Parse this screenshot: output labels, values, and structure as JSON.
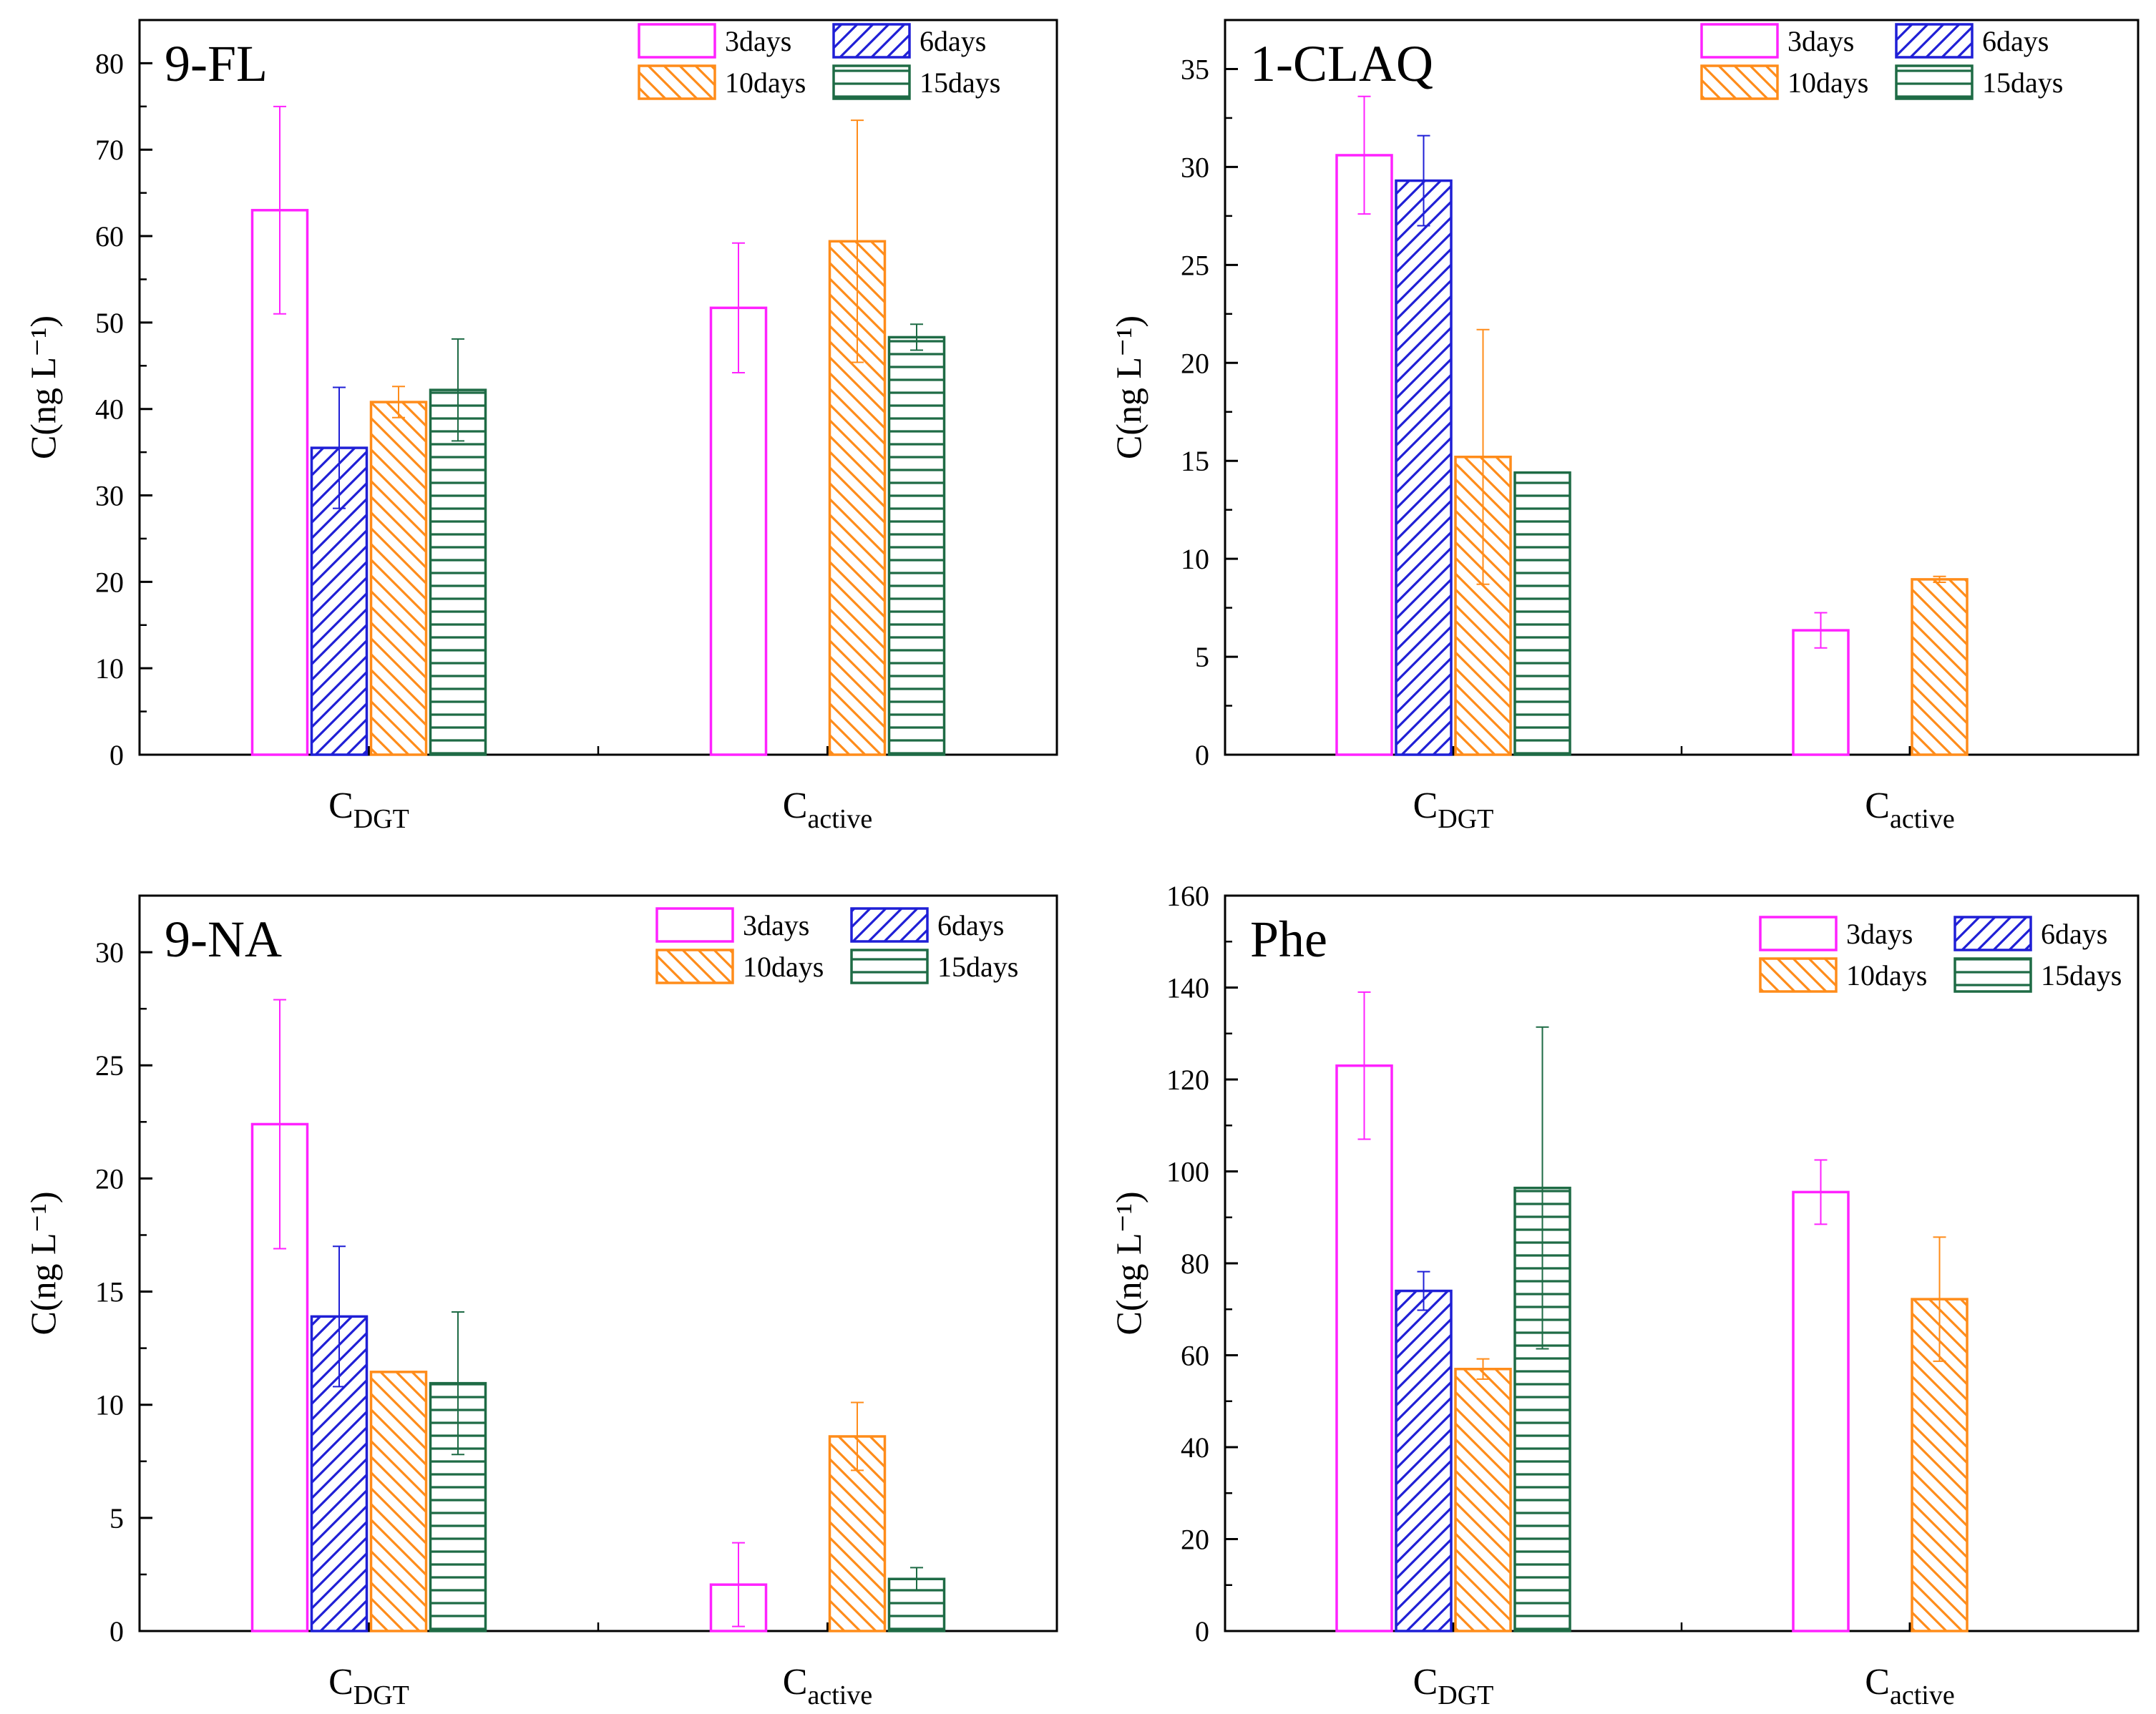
{
  "legend_labels": [
    "3days",
    "6days",
    "10days",
    "15days"
  ],
  "series_style": [
    {
      "name": "3days",
      "color": "#ff22ff",
      "pattern": "none"
    },
    {
      "name": "6days",
      "color": "#1f1fd6",
      "pattern": "diag-up"
    },
    {
      "name": "10days",
      "color": "#ff8c1a",
      "pattern": "diag-down"
    },
    {
      "name": "15days",
      "color": "#1e6b45",
      "pattern": "horizontal"
    }
  ],
  "chart_data": [
    {
      "type": "bar",
      "title": "9-FL",
      "ylabel": "C(ng L⁻¹)",
      "ylim": [
        0,
        85
      ],
      "yticks": [
        0,
        10,
        20,
        30,
        40,
        50,
        60,
        70,
        80
      ],
      "categories": [
        {
          "main": "C",
          "sub": "DGT"
        },
        {
          "main": "C",
          "sub": "active"
        }
      ],
      "series": [
        {
          "name": "3days",
          "values": [
            63,
            51.7
          ],
          "errors": [
            12,
            7.5
          ]
        },
        {
          "name": "6days",
          "values": [
            35.5,
            null
          ],
          "errors": [
            7,
            null
          ]
        },
        {
          "name": "10days",
          "values": [
            40.8,
            59.4
          ],
          "errors": [
            1.8,
            14
          ]
        },
        {
          "name": "15days",
          "values": [
            42.2,
            48.3
          ],
          "errors": [
            5.9,
            1.5
          ]
        }
      ]
    },
    {
      "type": "bar",
      "title": "1-CLAQ",
      "ylabel": "C(ng L⁻¹)",
      "ylim": [
        0,
        37.5
      ],
      "yticks": [
        0,
        5,
        10,
        15,
        20,
        25,
        30,
        35
      ],
      "categories": [
        {
          "main": "C",
          "sub": "DGT"
        },
        {
          "main": "C",
          "sub": "active"
        }
      ],
      "series": [
        {
          "name": "3days",
          "values": [
            30.6,
            6.35
          ],
          "errors": [
            3,
            0.9
          ]
        },
        {
          "name": "6days",
          "values": [
            29.3,
            null
          ],
          "errors": [
            2.3,
            null
          ]
        },
        {
          "name": "10days",
          "values": [
            15.2,
            8.95
          ],
          "errors": [
            6.5,
            0.15
          ]
        },
        {
          "name": "15days",
          "values": [
            14.4,
            null
          ],
          "errors": [
            null,
            null
          ]
        }
      ]
    },
    {
      "type": "bar",
      "title": "9-NA",
      "ylabel": "C(ng L⁻¹)",
      "ylim": [
        0,
        32.5
      ],
      "yticks": [
        0,
        5,
        10,
        15,
        20,
        25,
        30
      ],
      "categories": [
        {
          "main": "C",
          "sub": "DGT"
        },
        {
          "main": "C",
          "sub": "active"
        }
      ],
      "series": [
        {
          "name": "3days",
          "values": [
            22.4,
            2.05
          ],
          "errors": [
            5.5,
            1.85
          ]
        },
        {
          "name": "6days",
          "values": [
            13.9,
            null
          ],
          "errors": [
            3.1,
            null
          ]
        },
        {
          "name": "10days",
          "values": [
            11.45,
            8.6
          ],
          "errors": [
            null,
            1.5
          ]
        },
        {
          "name": "15days",
          "values": [
            10.95,
            2.3
          ],
          "errors": [
            3.15,
            0.5
          ]
        }
      ]
    },
    {
      "type": "bar",
      "title": "Phe",
      "ylabel": "C(ng L⁻¹)",
      "ylim": [
        0,
        160
      ],
      "yticks": [
        0,
        20,
        40,
        60,
        80,
        100,
        120,
        140,
        160
      ],
      "categories": [
        {
          "main": "C",
          "sub": "DGT"
        },
        {
          "main": "C",
          "sub": "active"
        }
      ],
      "series": [
        {
          "name": "3days",
          "values": [
            123,
            95.5
          ],
          "errors": [
            16,
            7
          ]
        },
        {
          "name": "6days",
          "values": [
            74,
            null
          ],
          "errors": [
            4.2,
            null
          ]
        },
        {
          "name": "10days",
          "values": [
            57,
            72.2
          ],
          "errors": [
            2.2,
            13.5
          ]
        },
        {
          "name": "15days",
          "values": [
            96.4,
            null
          ],
          "errors": [
            35,
            null
          ]
        }
      ]
    }
  ]
}
